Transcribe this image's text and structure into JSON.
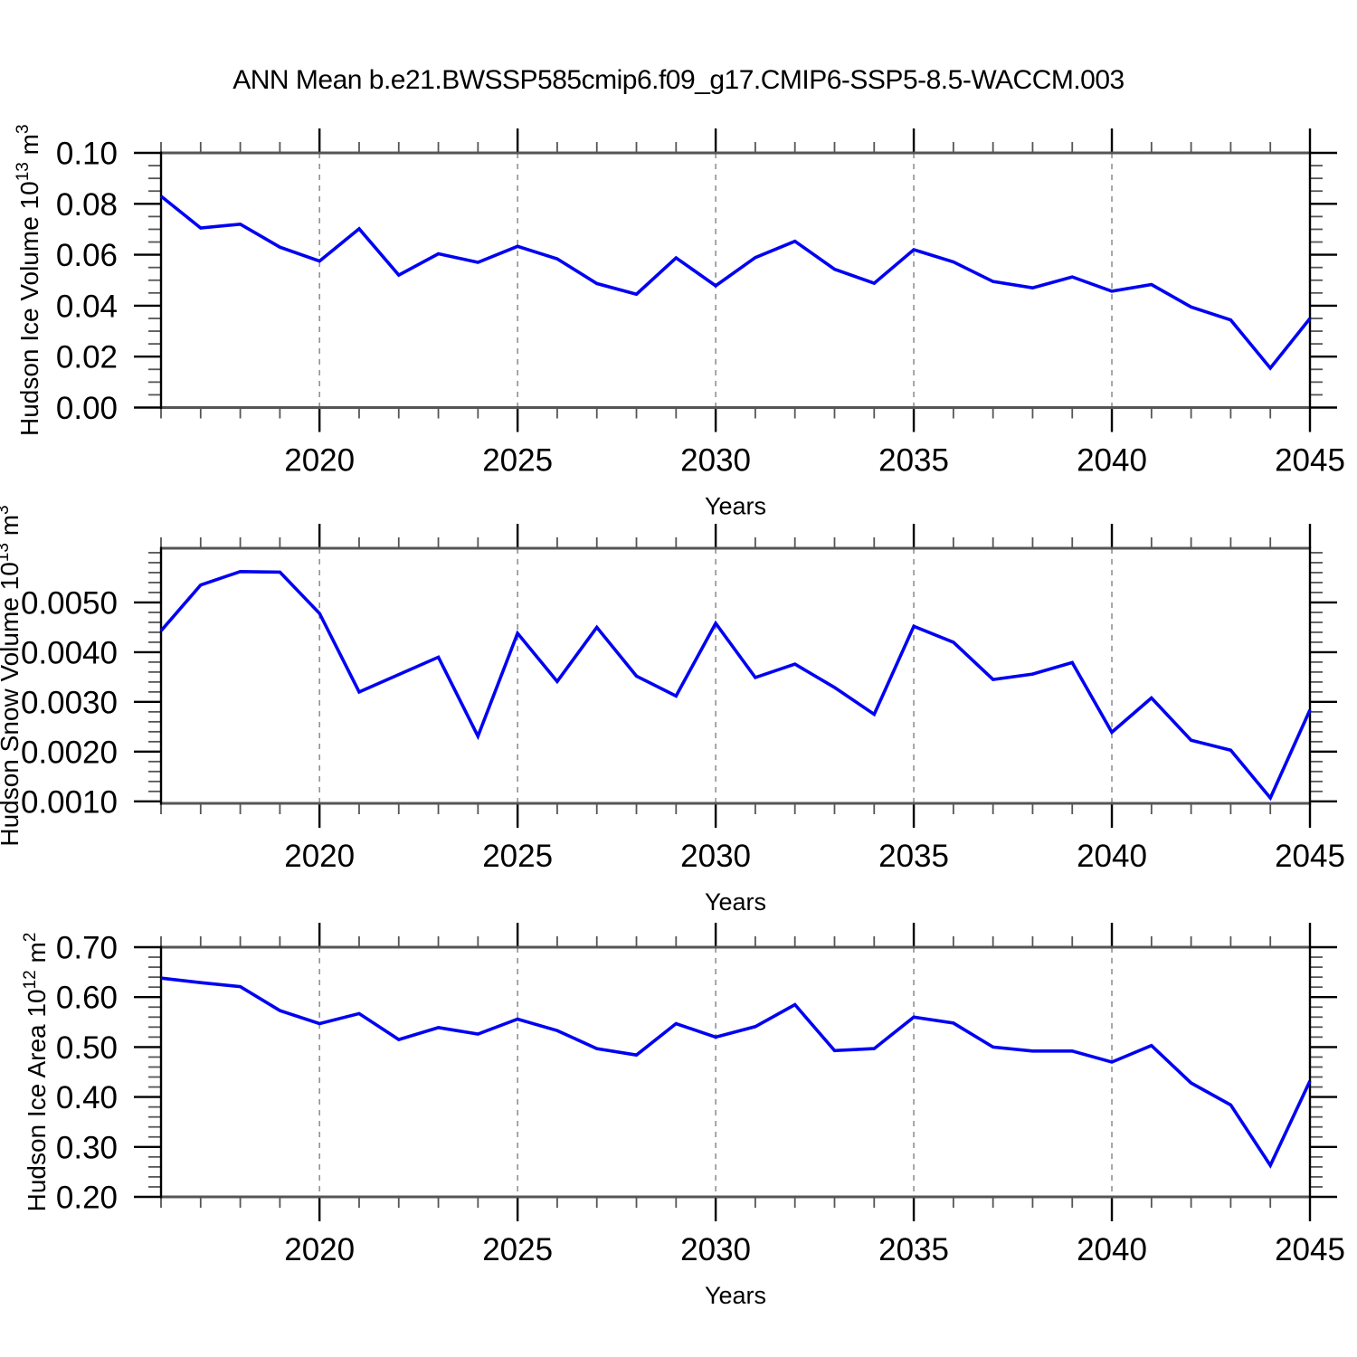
{
  "figure_title": "ANN Mean b.e21.BWSSP585cmip6.f09_g17.CMIP6-SSP5-8.5-WACCM.003",
  "line_color": "#0000f2",
  "grid_color": "#8a8a8a",
  "x_axis": {
    "label": "Years",
    "range": [
      2016,
      2045
    ],
    "tick_values": [
      2020,
      2025,
      2030,
      2035,
      2040,
      2045
    ],
    "tick_labels": [
      "2020",
      "2025",
      "2030",
      "2035",
      "2040",
      "2045"
    ],
    "minor_step": 1,
    "gridline_years": [
      2020,
      2025,
      2030,
      2035,
      2040
    ]
  },
  "years": [
    2016,
    2017,
    2018,
    2019,
    2020,
    2021,
    2022,
    2023,
    2024,
    2025,
    2026,
    2027,
    2028,
    2029,
    2030,
    2031,
    2032,
    2033,
    2034,
    2035,
    2036,
    2037,
    2038,
    2039,
    2040,
    2041,
    2042,
    2043,
    2044,
    2045
  ],
  "chart_data": [
    {
      "type": "line",
      "name": "ice-volume",
      "ylabel": "Hudson Ice Volume 10^13 m^3",
      "ylabel_parts": [
        {
          "t": "Hudson Ice Volume 10"
        },
        {
          "t": "13",
          "sup": true
        },
        {
          "t": " m"
        },
        {
          "t": "3",
          "sup": true
        }
      ],
      "xlabel": "Years",
      "ylim": [
        0.0,
        0.1
      ],
      "ytick_values": [
        0.0,
        0.02,
        0.04,
        0.06,
        0.08,
        0.1
      ],
      "ytick_labels": [
        "0.00",
        "0.02",
        "0.04",
        "0.06",
        "0.08",
        "0.10"
      ],
      "y_minor_step": 0.005,
      "grid": "vertical-dashed",
      "values": [
        0.083,
        0.0705,
        0.072,
        0.063,
        0.0575,
        0.0702,
        0.052,
        0.0604,
        0.057,
        0.0633,
        0.0584,
        0.0487,
        0.0445,
        0.0588,
        0.0478,
        0.0589,
        0.0653,
        0.0543,
        0.0488,
        0.062,
        0.0572,
        0.0495,
        0.047,
        0.0513,
        0.0457,
        0.0483,
        0.0395,
        0.0344,
        0.0155,
        0.035
      ]
    },
    {
      "type": "line",
      "name": "snow-volume",
      "ylabel": "Hudson Snow Volume 10^13 m^3",
      "ylabel_parts": [
        {
          "t": "Hudson Snow Volume 10"
        },
        {
          "t": "13",
          "sup": true
        },
        {
          "t": " m"
        },
        {
          "t": "3",
          "sup": true
        }
      ],
      "xlabel": "Years",
      "ylim": [
        0.00096,
        0.00609
      ],
      "ytick_values": [
        0.001,
        0.002,
        0.003,
        0.004,
        0.005
      ],
      "ytick_labels": [
        "0.0010",
        "0.0020",
        "0.0030",
        "0.0040",
        "0.0050"
      ],
      "y_minor_step": 0.0002,
      "grid": "vertical-dashed",
      "values": [
        0.00443,
        0.00535,
        0.00562,
        0.00561,
        0.00478,
        0.0032,
        0.00355,
        0.0039,
        0.00231,
        0.00438,
        0.00341,
        0.0045,
        0.00352,
        0.00312,
        0.00458,
        0.00349,
        0.00376,
        0.00329,
        0.00275,
        0.00452,
        0.0042,
        0.00345,
        0.00356,
        0.00379,
        0.00239,
        0.00308,
        0.00223,
        0.00203,
        0.00107,
        0.00284
      ]
    },
    {
      "type": "line",
      "name": "ice-area",
      "ylabel": "Hudson Ice Area 10^12 m^2",
      "ylabel_parts": [
        {
          "t": "Hudson Ice Area 10"
        },
        {
          "t": "12",
          "sup": true
        },
        {
          "t": " m"
        },
        {
          "t": "2",
          "sup": true
        }
      ],
      "xlabel": "Years",
      "ylim": [
        0.2,
        0.7
      ],
      "ytick_values": [
        0.2,
        0.3,
        0.4,
        0.5,
        0.6,
        0.7
      ],
      "ytick_labels": [
        "0.20",
        "0.30",
        "0.40",
        "0.50",
        "0.60",
        "0.70"
      ],
      "y_minor_step": 0.02,
      "grid": "vertical-dashed",
      "values": [
        0.638,
        0.629,
        0.621,
        0.573,
        0.547,
        0.567,
        0.515,
        0.539,
        0.526,
        0.556,
        0.533,
        0.497,
        0.484,
        0.547,
        0.52,
        0.541,
        0.585,
        0.493,
        0.497,
        0.56,
        0.548,
        0.5,
        0.492,
        0.492,
        0.47,
        0.503,
        0.428,
        0.384,
        0.263,
        0.432
      ]
    }
  ]
}
